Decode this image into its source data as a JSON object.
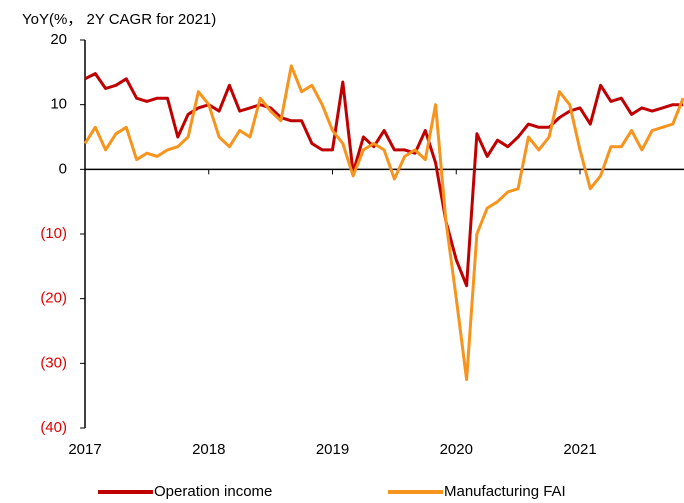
{
  "chart_data": {
    "type": "line",
    "title": "YoY(%，  2Y CAGR for 2021)",
    "categories": [
      "2017",
      null,
      null,
      null,
      null,
      null,
      null,
      null,
      null,
      null,
      null,
      null,
      "2018",
      null,
      null,
      null,
      null,
      null,
      null,
      null,
      null,
      null,
      null,
      null,
      "2019",
      null,
      null,
      null,
      null,
      null,
      null,
      null,
      null,
      null,
      null,
      null,
      "2020",
      null,
      null,
      null,
      null,
      null,
      null,
      null,
      null,
      null,
      null,
      null,
      "2021",
      null,
      null,
      null,
      null,
      null,
      null,
      null,
      null,
      null,
      null
    ],
    "series": [
      {
        "name": "Operation income",
        "color": "#c00000",
        "values": [
          14,
          14.8,
          12.5,
          13,
          14,
          11,
          10.5,
          11,
          11,
          5,
          8.5,
          9.5,
          10,
          9,
          13,
          9,
          9.5,
          10,
          9.5,
          8,
          7.5,
          7.5,
          4,
          3,
          3,
          13.5,
          -0.5,
          5,
          3.5,
          6,
          3,
          3,
          2.5,
          6,
          1,
          -8,
          -14,
          -18,
          5.5,
          2,
          4.5,
          3.5,
          5,
          7,
          6.5,
          6.5,
          8,
          9,
          9.5,
          7,
          13,
          10.5,
          11,
          8.5,
          9.5,
          9,
          9.5,
          10,
          10
        ]
      },
      {
        "name": "Manufacturing FAI",
        "color": "#f7941d",
        "values": [
          4,
          6.5,
          3,
          5.5,
          6.5,
          1.5,
          2.5,
          2,
          3,
          3.5,
          5,
          12,
          10,
          5,
          3.5,
          6,
          5,
          11,
          9,
          7.5,
          16,
          12,
          13,
          10,
          6,
          4,
          -1,
          3,
          4,
          3,
          -1.5,
          2,
          3,
          1.5,
          10,
          -8,
          -20,
          -32.5,
          -10,
          -6,
          -5,
          -3.5,
          -3,
          5,
          3,
          5,
          12,
          10,
          3,
          -3,
          -1,
          3.5,
          3.5,
          6,
          3,
          6,
          6.5,
          7,
          11
        ]
      }
    ],
    "ylim": [
      -40,
      20
    ],
    "yticks": [
      {
        "value": -40,
        "label": "(40)"
      },
      {
        "value": -30,
        "label": "(30)"
      },
      {
        "value": -20,
        "label": "(20)"
      },
      {
        "value": -10,
        "label": "(10)"
      },
      0,
      10,
      20
    ],
    "negative_tick_color": "#e00000",
    "grid": false,
    "legend": "bottom"
  }
}
